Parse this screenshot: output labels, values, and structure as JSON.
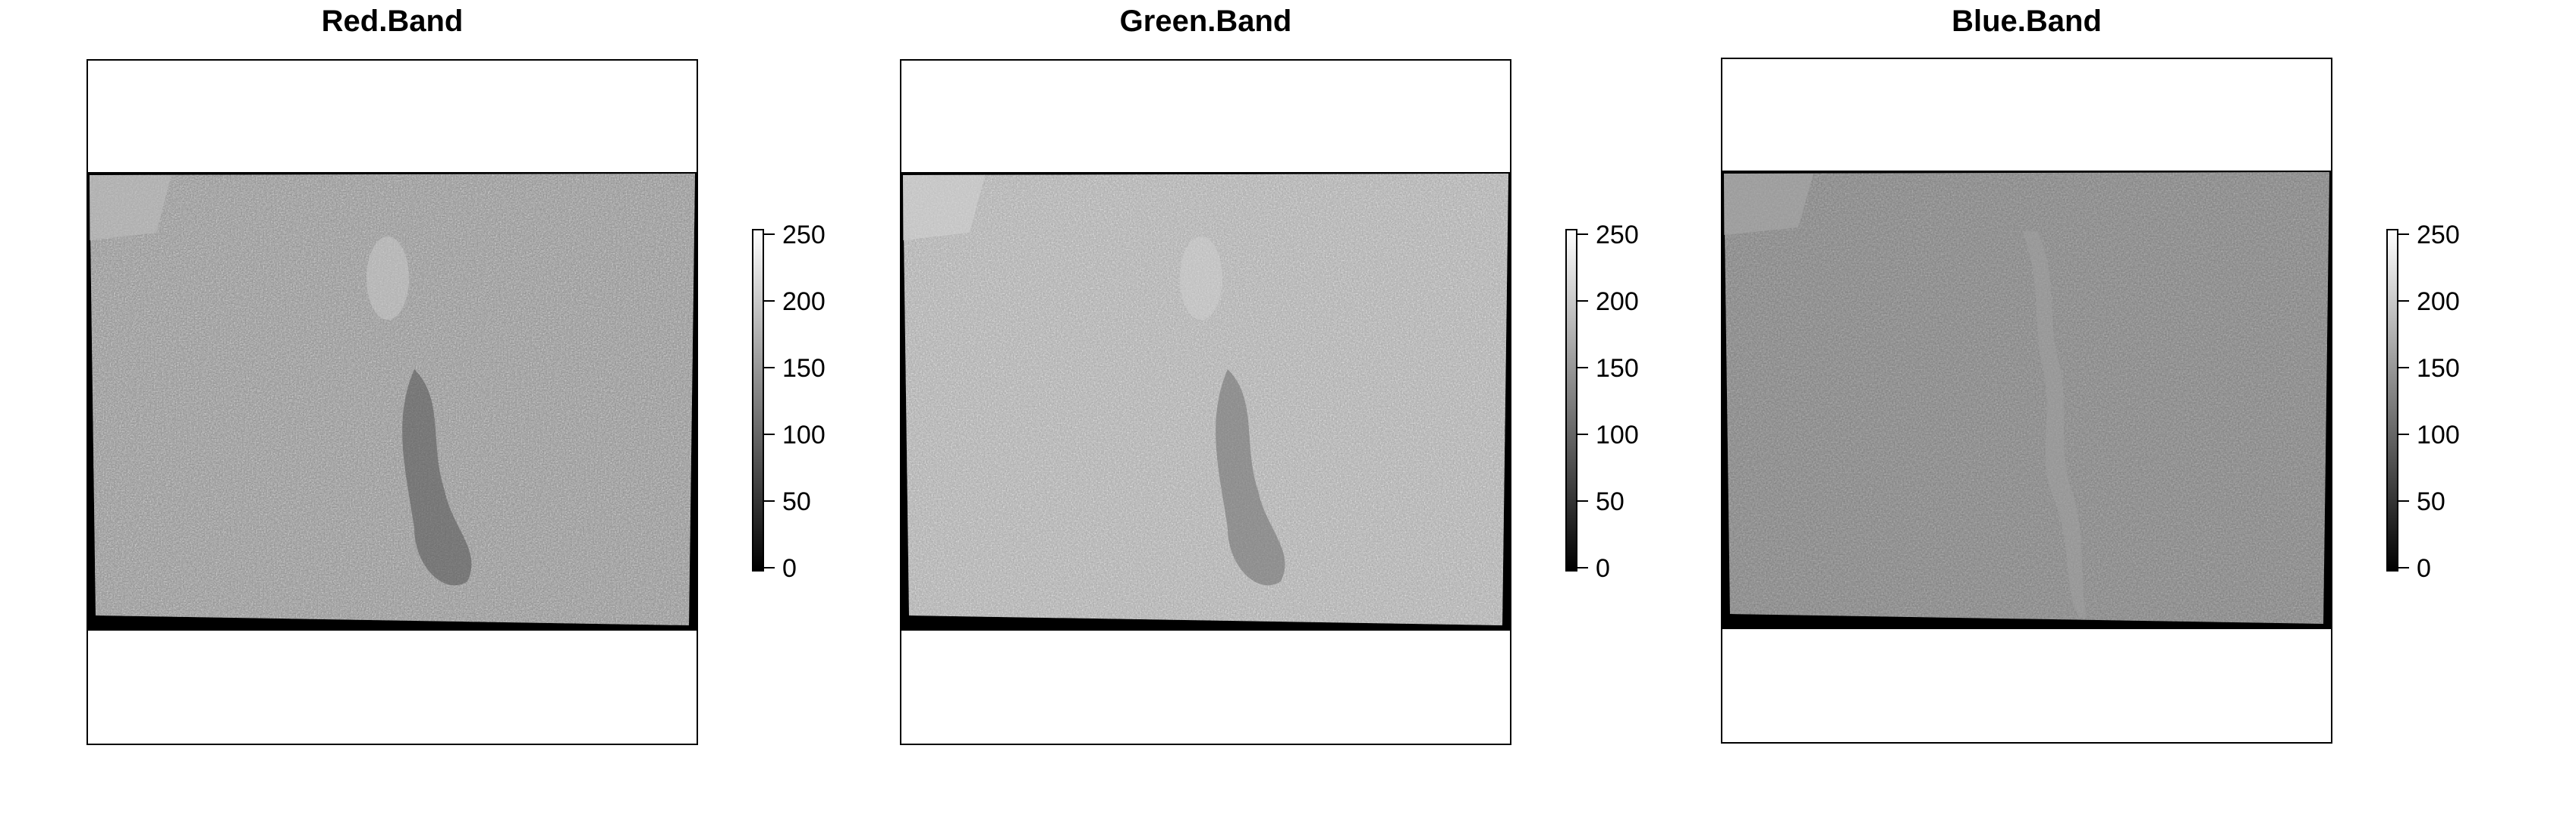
{
  "panels": [
    {
      "title": "Red.Band",
      "legend": {
        "min": 0,
        "max": 255,
        "ticks": [
          "0",
          "50",
          "100",
          "150",
          "200",
          "250"
        ]
      },
      "tone": "medium-grey",
      "colormap": "greyscale"
    },
    {
      "title": "Green.Band",
      "legend": {
        "min": 0,
        "max": 255,
        "ticks": [
          "0",
          "50",
          "100",
          "150",
          "200",
          "250"
        ]
      },
      "tone": "light-grey",
      "colormap": "greyscale"
    },
    {
      "title": "Blue.Band",
      "legend": {
        "min": 0,
        "max": 255,
        "ticks": [
          "0",
          "50",
          "100",
          "150",
          "200",
          "250"
        ]
      },
      "tone": "dark-grey",
      "colormap": "greyscale"
    }
  ]
}
